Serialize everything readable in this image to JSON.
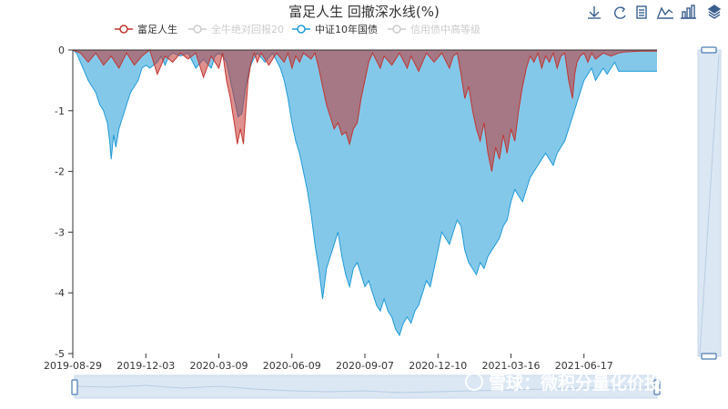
{
  "chart_data": {
    "type": "area",
    "title": "富足人生 回撤深水线(%)",
    "xlabel": "",
    "ylabel": "",
    "ylim": [
      -5,
      0
    ],
    "y_ticks": [
      "0",
      "-1",
      "-2",
      "-3",
      "-4",
      "-5"
    ],
    "x_tick_labels": [
      "2019-08-29",
      "2019-12-03",
      "2020-03-09",
      "2020-06-09",
      "2020-09-07",
      "2020-12-10",
      "2021-03-16",
      "2021-06-17"
    ],
    "x_ticks": [
      {
        "label": "2019-08-29",
        "index": 0
      },
      {
        "label": "2019-12-03",
        "index": 95
      },
      {
        "label": "2020-03-09",
        "index": 190
      },
      {
        "label": "2020-06-09",
        "index": 285
      },
      {
        "label": "2020-09-07",
        "index": 380
      },
      {
        "label": "2020-12-10",
        "index": 475
      },
      {
        "label": "2021-03-16",
        "index": 570
      },
      {
        "label": "2021-06-17",
        "index": 665
      }
    ],
    "x_index_range": [
      0,
      760
    ],
    "grid": false,
    "legend_position": "top",
    "legend": [
      {
        "name": "富足人生",
        "color": "#c23531",
        "active": true
      },
      {
        "name": "全牛绝对回报20",
        "color": "#cccccc",
        "active": false
      },
      {
        "name": "中证10年国债",
        "color": "#1f9bd7",
        "active": true
      },
      {
        "name": "信用债中高等级",
        "color": "#cccccc",
        "active": false
      }
    ],
    "series": [
      {
        "name": "富足人生",
        "color": "#c23531",
        "points": [
          [
            0,
            0
          ],
          [
            10,
            -0.05
          ],
          [
            20,
            -0.2
          ],
          [
            30,
            -0.05
          ],
          [
            40,
            -0.25
          ],
          [
            50,
            -0.1
          ],
          [
            60,
            -0.3
          ],
          [
            70,
            -0.05
          ],
          [
            80,
            -0.25
          ],
          [
            90,
            -0.1
          ],
          [
            100,
            0
          ],
          [
            110,
            -0.4
          ],
          [
            120,
            -0.1
          ],
          [
            130,
            -0.2
          ],
          [
            140,
            -0.05
          ],
          [
            150,
            -0.15
          ],
          [
            160,
            -0.05
          ],
          [
            170,
            -0.45
          ],
          [
            180,
            -0.1
          ],
          [
            190,
            -0.3
          ],
          [
            195,
            -0.05
          ],
          [
            200,
            -0.5
          ],
          [
            205,
            -0.8
          ],
          [
            210,
            -1.2
          ],
          [
            214,
            -1.55
          ],
          [
            218,
            -1.3
          ],
          [
            222,
            -1.55
          ],
          [
            225,
            -1.0
          ],
          [
            228,
            -0.5
          ],
          [
            232,
            -0.2
          ],
          [
            236,
            -0.05
          ],
          [
            240,
            -0.2
          ],
          [
            245,
            -0.05
          ],
          [
            255,
            -0.25
          ],
          [
            265,
            -0.05
          ],
          [
            275,
            -0.2
          ],
          [
            280,
            -0.05
          ],
          [
            285,
            -0.3
          ],
          [
            290,
            -0.1
          ],
          [
            295,
            -0.2
          ],
          [
            300,
            -0.05
          ],
          [
            310,
            -0.15
          ],
          [
            315,
            -0.05
          ],
          [
            320,
            -0.3
          ],
          [
            325,
            -0.6
          ],
          [
            330,
            -0.9
          ],
          [
            335,
            -1.1
          ],
          [
            340,
            -1.3
          ],
          [
            345,
            -1.2
          ],
          [
            350,
            -1.4
          ],
          [
            355,
            -1.35
          ],
          [
            360,
            -1.55
          ],
          [
            365,
            -1.3
          ],
          [
            370,
            -1.2
          ],
          [
            375,
            -0.8
          ],
          [
            380,
            -0.5
          ],
          [
            385,
            -0.2
          ],
          [
            390,
            -0.05
          ],
          [
            400,
            -0.3
          ],
          [
            405,
            -0.1
          ],
          [
            415,
            -0.25
          ],
          [
            425,
            -0.05
          ],
          [
            435,
            -0.3
          ],
          [
            440,
            -0.1
          ],
          [
            450,
            -0.35
          ],
          [
            460,
            -0.05
          ],
          [
            470,
            -0.2
          ],
          [
            480,
            -0.05
          ],
          [
            490,
            -0.3
          ],
          [
            495,
            -0.1
          ],
          [
            500,
            -0.05
          ],
          [
            505,
            -0.4
          ],
          [
            510,
            -0.8
          ],
          [
            515,
            -0.6
          ],
          [
            520,
            -1.0
          ],
          [
            525,
            -1.3
          ],
          [
            530,
            -1.5
          ],
          [
            535,
            -1.2
          ],
          [
            540,
            -1.7
          ],
          [
            545,
            -2.0
          ],
          [
            550,
            -1.6
          ],
          [
            555,
            -1.8
          ],
          [
            560,
            -1.4
          ],
          [
            565,
            -1.7
          ],
          [
            570,
            -1.3
          ],
          [
            575,
            -1.5
          ],
          [
            580,
            -1.0
          ],
          [
            585,
            -0.6
          ],
          [
            590,
            -0.3
          ],
          [
            595,
            -0.1
          ],
          [
            600,
            -0.2
          ],
          [
            605,
            -0.05
          ],
          [
            610,
            -0.3
          ],
          [
            615,
            -0.1
          ],
          [
            620,
            -0.2
          ],
          [
            625,
            -0.05
          ],
          [
            630,
            -0.3
          ],
          [
            635,
            -0.1
          ],
          [
            640,
            -0.05
          ],
          [
            645,
            -0.5
          ],
          [
            650,
            -0.8
          ],
          [
            653,
            -0.4
          ],
          [
            656,
            -0.2
          ],
          [
            660,
            -0.1
          ],
          [
            665,
            -0.05
          ],
          [
            670,
            -0.2
          ],
          [
            675,
            -0.05
          ],
          [
            680,
            -0.15
          ],
          [
            690,
            -0.05
          ],
          [
            700,
            -0.1
          ],
          [
            710,
            -0.05
          ],
          [
            720,
            -0.03
          ],
          [
            740,
            -0.02
          ],
          [
            760,
            -0.02
          ]
        ]
      },
      {
        "name": "中证10年国债",
        "color": "#1f9bd7",
        "points": [
          [
            0,
            0
          ],
          [
            5,
            -0.05
          ],
          [
            10,
            -0.2
          ],
          [
            15,
            -0.35
          ],
          [
            20,
            -0.5
          ],
          [
            25,
            -0.6
          ],
          [
            30,
            -0.7
          ],
          [
            35,
            -0.9
          ],
          [
            40,
            -1.0
          ],
          [
            45,
            -1.2
          ],
          [
            48,
            -1.5
          ],
          [
            50,
            -1.8
          ],
          [
            53,
            -1.4
          ],
          [
            56,
            -1.6
          ],
          [
            60,
            -1.3
          ],
          [
            65,
            -1.1
          ],
          [
            70,
            -0.9
          ],
          [
            75,
            -0.7
          ],
          [
            80,
            -0.6
          ],
          [
            85,
            -0.5
          ],
          [
            90,
            -0.3
          ],
          [
            95,
            -0.25
          ],
          [
            100,
            -0.3
          ],
          [
            105,
            -0.25
          ],
          [
            110,
            -0.2
          ],
          [
            115,
            -0.1
          ],
          [
            120,
            -0.25
          ],
          [
            125,
            -0.1
          ],
          [
            130,
            -0.05
          ],
          [
            140,
            -0.1
          ],
          [
            150,
            -0.05
          ],
          [
            160,
            -0.3
          ],
          [
            170,
            -0.15
          ],
          [
            180,
            -0.3
          ],
          [
            185,
            -0.1
          ],
          [
            190,
            -0.05
          ],
          [
            195,
            -0.1
          ],
          [
            200,
            -0.2
          ],
          [
            205,
            -0.5
          ],
          [
            210,
            -0.8
          ],
          [
            215,
            -1.1
          ],
          [
            220,
            -1.05
          ],
          [
            225,
            -0.6
          ],
          [
            230,
            -0.3
          ],
          [
            235,
            -0.15
          ],
          [
            240,
            -0.05
          ],
          [
            250,
            -0.2
          ],
          [
            260,
            -0.05
          ],
          [
            270,
            -0.3
          ],
          [
            275,
            -0.5
          ],
          [
            280,
            -0.8
          ],
          [
            285,
            -1.2
          ],
          [
            290,
            -1.5
          ],
          [
            295,
            -1.7
          ],
          [
            300,
            -2.0
          ],
          [
            305,
            -2.3
          ],
          [
            310,
            -2.7
          ],
          [
            315,
            -3.2
          ],
          [
            320,
            -3.6
          ],
          [
            325,
            -4.1
          ],
          [
            330,
            -3.6
          ],
          [
            335,
            -3.4
          ],
          [
            340,
            -3.2
          ],
          [
            345,
            -3.0
          ],
          [
            350,
            -3.4
          ],
          [
            355,
            -3.7
          ],
          [
            360,
            -3.9
          ],
          [
            365,
            -3.6
          ],
          [
            370,
            -3.5
          ],
          [
            375,
            -3.7
          ],
          [
            380,
            -3.9
          ],
          [
            385,
            -3.8
          ],
          [
            390,
            -4.0
          ],
          [
            395,
            -4.2
          ],
          [
            400,
            -4.3
          ],
          [
            405,
            -4.1
          ],
          [
            410,
            -4.3
          ],
          [
            415,
            -4.4
          ],
          [
            420,
            -4.6
          ],
          [
            425,
            -4.7
          ],
          [
            430,
            -4.5
          ],
          [
            435,
            -4.4
          ],
          [
            440,
            -4.5
          ],
          [
            445,
            -4.3
          ],
          [
            450,
            -4.2
          ],
          [
            455,
            -4.0
          ],
          [
            460,
            -3.8
          ],
          [
            465,
            -3.9
          ],
          [
            470,
            -3.6
          ],
          [
            475,
            -3.3
          ],
          [
            480,
            -3.0
          ],
          [
            485,
            -3.1
          ],
          [
            490,
            -3.2
          ],
          [
            495,
            -3.0
          ],
          [
            500,
            -2.8
          ],
          [
            505,
            -2.9
          ],
          [
            510,
            -3.3
          ],
          [
            515,
            -3.5
          ],
          [
            520,
            -3.6
          ],
          [
            525,
            -3.7
          ],
          [
            530,
            -3.5
          ],
          [
            535,
            -3.6
          ],
          [
            540,
            -3.4
          ],
          [
            545,
            -3.3
          ],
          [
            550,
            -3.2
          ],
          [
            555,
            -3.1
          ],
          [
            560,
            -2.9
          ],
          [
            565,
            -2.8
          ],
          [
            570,
            -2.5
          ],
          [
            575,
            -2.3
          ],
          [
            580,
            -2.4
          ],
          [
            585,
            -2.5
          ],
          [
            590,
            -2.3
          ],
          [
            595,
            -2.1
          ],
          [
            600,
            -2.0
          ],
          [
            605,
            -1.9
          ],
          [
            610,
            -1.8
          ],
          [
            615,
            -1.7
          ],
          [
            620,
            -1.8
          ],
          [
            625,
            -1.9
          ],
          [
            630,
            -1.7
          ],
          [
            635,
            -1.6
          ],
          [
            640,
            -1.5
          ],
          [
            645,
            -1.3
          ],
          [
            650,
            -1.1
          ],
          [
            655,
            -0.9
          ],
          [
            660,
            -0.7
          ],
          [
            665,
            -0.5
          ],
          [
            670,
            -0.4
          ],
          [
            675,
            -0.3
          ],
          [
            680,
            -0.5
          ],
          [
            685,
            -0.4
          ],
          [
            690,
            -0.3
          ],
          [
            695,
            -0.4
          ],
          [
            700,
            -0.3
          ],
          [
            705,
            -0.2
          ],
          [
            710,
            -0.35
          ],
          [
            720,
            -0.35
          ],
          [
            740,
            -0.35
          ],
          [
            760,
            -0.35
          ]
        ]
      }
    ]
  },
  "toolbox": [
    {
      "name": "download-icon"
    },
    {
      "name": "refresh-icon"
    },
    {
      "name": "data-view-icon"
    },
    {
      "name": "line-chart-icon"
    },
    {
      "name": "bar-chart-icon"
    },
    {
      "name": "stack-icon"
    }
  ],
  "watermark": "雪球：微积分量化价投"
}
